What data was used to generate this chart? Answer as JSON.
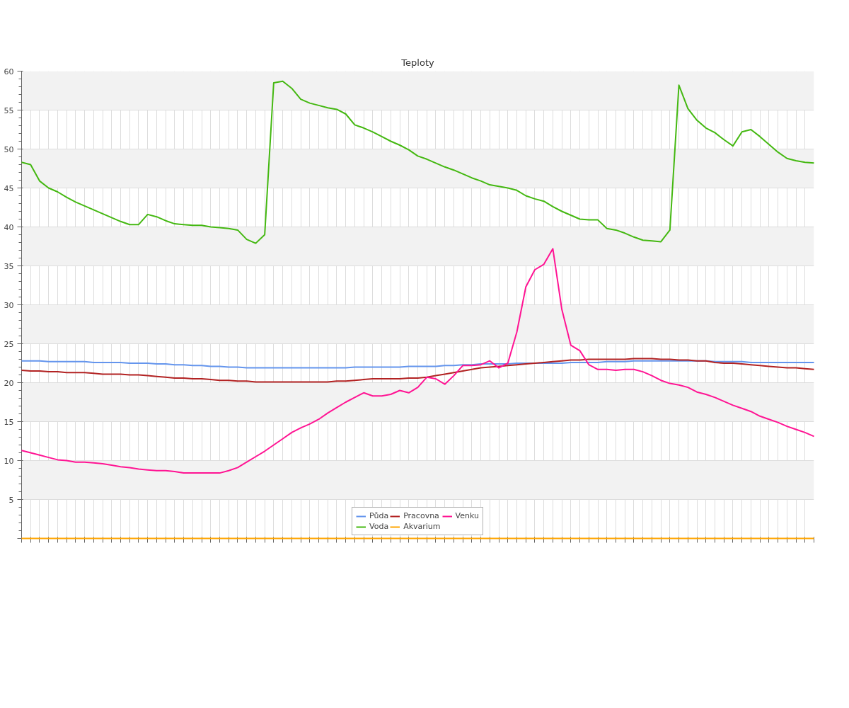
{
  "chart_data": {
    "type": "line",
    "title": "Teploty",
    "categories": [
      null,
      null,
      null,
      null,
      null,
      null,
      null,
      null,
      null,
      null,
      null,
      null,
      null,
      null,
      null,
      null,
      null,
      null,
      null,
      null,
      null,
      null,
      null,
      null,
      null,
      null,
      null,
      null,
      null,
      null,
      null,
      null,
      null,
      null,
      null,
      null,
      null,
      null,
      null,
      null,
      null,
      null,
      null,
      null,
      null,
      null,
      null,
      null,
      null,
      null,
      null,
      null,
      null,
      null,
      null,
      null,
      null,
      null,
      null,
      null,
      null,
      null,
      null,
      null,
      null,
      null,
      null,
      null,
      null,
      null,
      null,
      null,
      null,
      null,
      null,
      null,
      null,
      null,
      null,
      null,
      null,
      null,
      null,
      null,
      null,
      null,
      null,
      null,
      null
    ],
    "ylim": [
      0,
      60
    ],
    "yticks": [
      {
        "value": 0,
        "label": null
      },
      5,
      10,
      15,
      20,
      25,
      30,
      35,
      40,
      45,
      50,
      55,
      60
    ],
    "grid": true,
    "legend": "bottom",
    "series": [
      {
        "name": "Půda",
        "color": "#6495ed",
        "values": [
          22.8,
          22.8,
          22.8,
          22.7,
          22.7,
          22.7,
          22.7,
          22.7,
          22.6,
          22.6,
          22.6,
          22.6,
          22.5,
          22.5,
          22.5,
          22.4,
          22.4,
          22.3,
          22.3,
          22.2,
          22.2,
          22.1,
          22.1,
          22.0,
          22.0,
          21.9,
          21.9,
          21.9,
          21.9,
          21.9,
          21.9,
          21.9,
          21.9,
          21.9,
          21.9,
          21.9,
          21.9,
          22.0,
          22.0,
          22.0,
          22.0,
          22.0,
          22.0,
          22.1,
          22.1,
          22.1,
          22.1,
          22.2,
          22.2,
          22.3,
          22.3,
          22.4,
          22.4,
          22.4,
          22.4,
          22.5,
          22.5,
          22.5,
          22.5,
          22.5,
          22.5,
          22.6,
          22.6,
          22.6,
          22.6,
          22.7,
          22.7,
          22.7,
          22.8,
          22.8,
          22.8,
          22.8,
          22.8,
          22.8,
          22.8,
          22.8,
          22.8,
          22.7,
          22.7,
          22.7,
          22.7,
          22.6,
          22.6,
          22.6,
          22.6,
          22.6,
          22.6,
          22.6,
          22.6
        ]
      },
      {
        "name": "Pracovna",
        "color": "#b22222",
        "values": [
          21.6,
          21.5,
          21.5,
          21.4,
          21.4,
          21.3,
          21.3,
          21.3,
          21.2,
          21.1,
          21.1,
          21.1,
          21.0,
          21.0,
          20.9,
          20.8,
          20.7,
          20.6,
          20.6,
          20.5,
          20.5,
          20.4,
          20.3,
          20.3,
          20.2,
          20.2,
          20.1,
          20.1,
          20.1,
          20.1,
          20.1,
          20.1,
          20.1,
          20.1,
          20.1,
          20.2,
          20.2,
          20.3,
          20.4,
          20.5,
          20.5,
          20.5,
          20.5,
          20.6,
          20.6,
          20.7,
          20.9,
          21.1,
          21.3,
          21.5,
          21.7,
          21.9,
          22.0,
          22.1,
          22.2,
          22.3,
          22.4,
          22.5,
          22.6,
          22.7,
          22.8,
          22.9,
          22.9,
          23.0,
          23.0,
          23.0,
          23.0,
          23.0,
          23.1,
          23.1,
          23.1,
          23.0,
          23.0,
          22.9,
          22.9,
          22.8,
          22.8,
          22.6,
          22.5,
          22.5,
          22.4,
          22.3,
          22.2,
          22.1,
          22.0,
          21.9,
          21.9,
          21.8,
          21.7
        ]
      },
      {
        "name": "Venku",
        "color": "#ff1493",
        "values": [
          11.3,
          11.0,
          10.7,
          10.4,
          10.1,
          10.0,
          9.8,
          9.8,
          9.7,
          9.6,
          9.4,
          9.2,
          9.1,
          8.9,
          8.8,
          8.7,
          8.7,
          8.6,
          8.4,
          8.4,
          8.4,
          8.4,
          8.4,
          8.7,
          9.1,
          9.8,
          10.5,
          11.2,
          12.0,
          12.8,
          13.6,
          14.2,
          14.7,
          15.3,
          16.1,
          16.8,
          17.5,
          18.1,
          18.7,
          18.3,
          18.3,
          18.5,
          19.0,
          18.7,
          19.4,
          20.7,
          20.5,
          19.8,
          20.9,
          22.2,
          22.2,
          22.3,
          22.8,
          21.9,
          22.5,
          26.5,
          32.3,
          34.5,
          35.2,
          37.2,
          29.4,
          24.8,
          24.1,
          22.3,
          21.7,
          21.7,
          21.6,
          21.7,
          21.7,
          21.4,
          20.9,
          20.3,
          19.9,
          19.7,
          19.4,
          18.8,
          18.5,
          18.1,
          17.6,
          17.1,
          16.7,
          16.3,
          15.7,
          15.3,
          14.9,
          14.4,
          14.0,
          13.6,
          13.1
        ]
      },
      {
        "name": "Voda",
        "color": "#44b811",
        "values": [
          48.3,
          48.0,
          45.9,
          45.0,
          44.5,
          43.8,
          43.2,
          42.7,
          42.2,
          41.7,
          41.2,
          40.7,
          40.3,
          40.3,
          41.6,
          41.3,
          40.8,
          40.4,
          40.3,
          40.2,
          40.2,
          40.0,
          39.9,
          39.8,
          39.6,
          38.4,
          37.9,
          39.0,
          58.5,
          58.7,
          57.8,
          56.4,
          55.9,
          55.6,
          55.3,
          55.1,
          54.5,
          53.1,
          52.7,
          52.2,
          51.6,
          51.0,
          50.5,
          49.9,
          49.1,
          48.7,
          48.2,
          47.7,
          47.3,
          46.8,
          46.3,
          45.9,
          45.4,
          45.2,
          45.0,
          44.7,
          44.0,
          43.6,
          43.3,
          42.6,
          42.0,
          41.5,
          41.0,
          40.9,
          40.9,
          39.8,
          39.6,
          39.2,
          38.7,
          38.3,
          38.2,
          38.1,
          39.6,
          58.2,
          55.2,
          53.7,
          52.7,
          52.1,
          51.2,
          50.4,
          52.2,
          52.5,
          51.6,
          50.6,
          49.6,
          48.8,
          48.5,
          48.3,
          48.2
        ]
      },
      {
        "name": "Akvarium",
        "color": "#ffa500",
        "values": [
          0,
          0,
          0,
          0,
          0,
          0,
          0,
          0,
          0,
          0,
          0,
          0,
          0,
          0,
          0,
          0,
          0,
          0,
          0,
          0,
          0,
          0,
          0,
          0,
          0,
          0,
          0,
          0,
          0,
          0,
          0,
          0,
          0,
          0,
          0,
          0,
          0,
          0,
          0,
          0,
          0,
          0,
          0,
          0,
          0,
          0,
          0,
          0,
          0,
          0,
          0,
          0,
          0,
          0,
          0,
          0,
          0,
          0,
          0,
          0,
          0,
          0,
          0,
          0,
          0,
          0,
          0,
          0,
          0,
          0,
          0,
          0,
          0,
          0,
          0,
          0,
          0,
          0,
          0,
          0,
          0,
          0,
          0,
          0,
          0,
          0,
          0,
          0,
          0
        ]
      }
    ]
  }
}
